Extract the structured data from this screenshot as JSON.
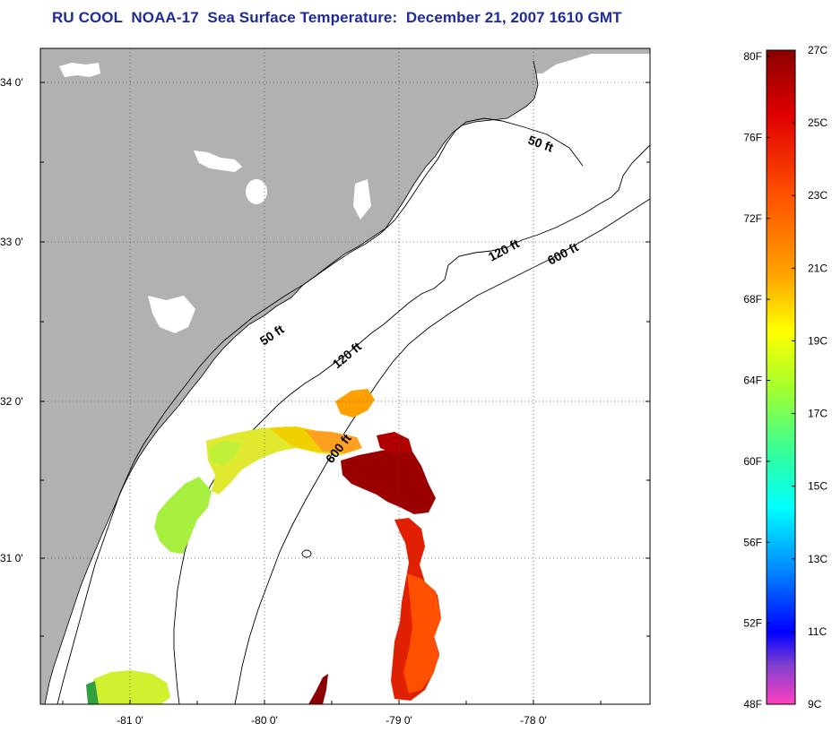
{
  "title": "RU COOL  NOAA-17  Sea Surface Temperature:  December 21, 2007 1610 GMT",
  "colors": {
    "land": "#b1b1b1",
    "ocean": "#ffffff",
    "title": "#1f2a9c"
  },
  "lat_labels": [
    "34 0'",
    "33 0'",
    "32 0'",
    "31 0'"
  ],
  "lon_labels": [
    "-81 0'",
    "-80 0'",
    "-79 0'",
    "-78 0'"
  ],
  "depth_contours": {
    "nearshore": "50 ft",
    "mid": "120 ft",
    "shelf_break": "600 ft"
  },
  "colorbar": {
    "fahrenheit_labels": [
      "80F",
      "76F",
      "72F",
      "68F",
      "64F",
      "60F",
      "56F",
      "52F",
      "48F"
    ],
    "celsius_labels": [
      "27C",
      "25C",
      "23C",
      "21C",
      "19C",
      "17C",
      "15C",
      "13C",
      "11C",
      "9C"
    ],
    "range_celsius": [
      9,
      27
    ]
  }
}
